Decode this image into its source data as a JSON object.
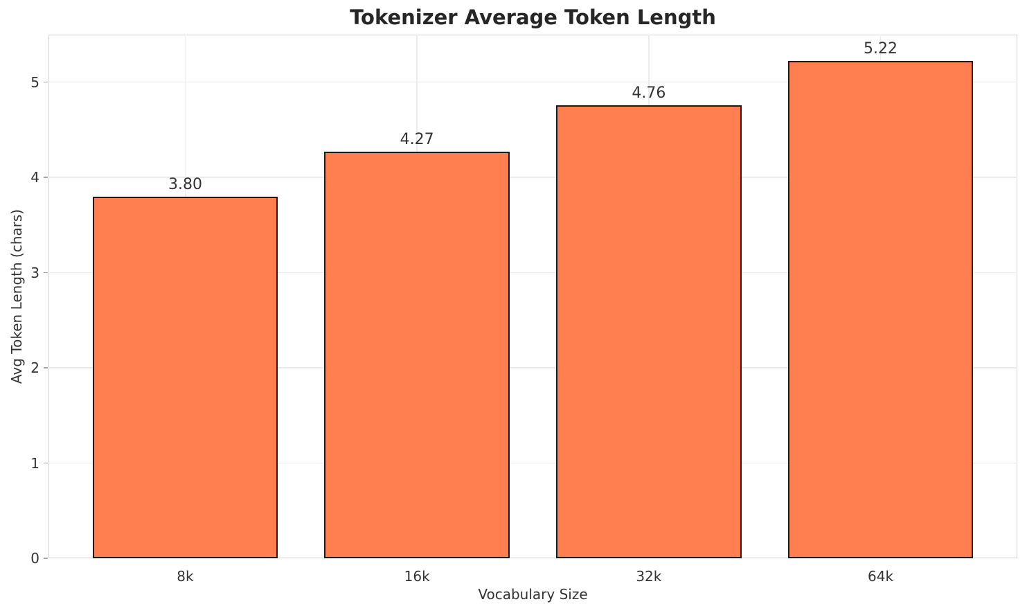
{
  "chart_data": {
    "type": "bar",
    "title": "Tokenizer Average Token Length",
    "xlabel": "Vocabulary Size",
    "ylabel": "Avg Token Length (chars)",
    "categories": [
      "8k",
      "16k",
      "32k",
      "64k"
    ],
    "values": [
      3.8,
      4.27,
      4.76,
      5.22
    ],
    "value_labels": [
      "3.80",
      "4.27",
      "4.76",
      "5.22"
    ],
    "yticks": [
      0,
      1,
      2,
      3,
      4,
      5
    ],
    "ylim": [
      0,
      5.5
    ],
    "grid": true,
    "legend": "none",
    "colors": {
      "bar_fill": "#FF7F50",
      "bar_edge": "#1a1a1a",
      "grid_line": "#ebebeb",
      "spine": "#d4d4d4",
      "title_text": "#262626",
      "tick_text": "#333333",
      "tick_mark": "#a6a6a6",
      "background": "#ffffff"
    }
  }
}
